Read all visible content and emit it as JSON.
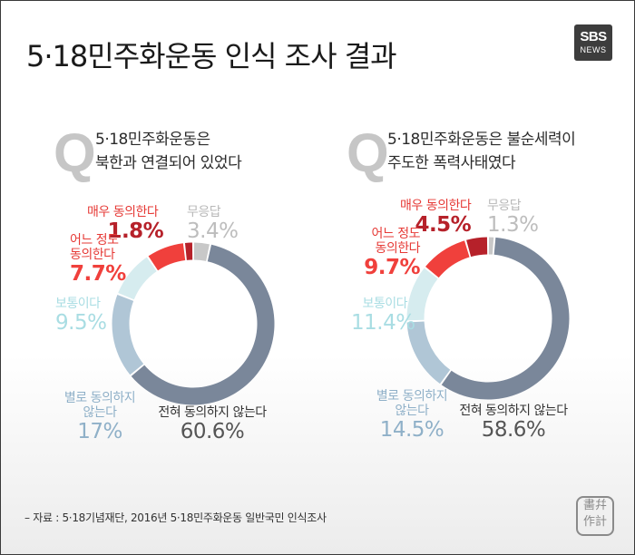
{
  "title": "5·18민주화운동 인식 조사 결과",
  "logo": {
    "line1": "SBS",
    "line2": "NEWS"
  },
  "source": "– 자료 : 5·18기념재단, 2016년 5·18민주화운동 일반국민 인식조사",
  "stamp": "",
  "colors": {
    "strongly_agree": "#b6212a",
    "somewhat_agree": "#f0403c",
    "neutral": "#d6ecef",
    "disagree": "#b0c6d6",
    "strongly_disagree": "#7a879a",
    "no_answer": "#c8c8c8"
  },
  "chart_data": [
    {
      "type": "pie",
      "variant": "donut",
      "question_mark": "Q",
      "question": [
        "5·18민주화운동은",
        "북한과 연결되어 있었다"
      ],
      "categories": [
        "매우 동의한다",
        "어느 정도 동의한다",
        "보통이다",
        "별로 동의하지 않는다",
        "전혀 동의하지 않는다",
        "무응답"
      ],
      "values": [
        1.8,
        7.7,
        9.5,
        17,
        60.6,
        3.4
      ],
      "labels": [
        {
          "cat": "매우 동의한다",
          "val": "1.8%"
        },
        {
          "cat": "어느 정도 동의한다",
          "val": "7.7%"
        },
        {
          "cat": "보통이다",
          "val": "9.5%"
        },
        {
          "cat": "별로 동의하지 않는다",
          "val": "17%"
        },
        {
          "cat": "전혀 동의하지 않는다",
          "val": "60.6%"
        },
        {
          "cat": "무응답",
          "val": "3.4%"
        }
      ]
    },
    {
      "type": "pie",
      "variant": "donut",
      "question_mark": "Q",
      "question": [
        "5·18민주화운동은 불순세력이",
        "주도한 폭력사태였다"
      ],
      "categories": [
        "매우 동의한다",
        "어느 정도 동의한다",
        "보통이다",
        "별로 동의하지 않는다",
        "전혀 동의하지 않는다",
        "무응답"
      ],
      "values": [
        4.5,
        9.7,
        11.4,
        14.5,
        58.6,
        1.3
      ],
      "labels": [
        {
          "cat": "매우 동의한다",
          "val": "4.5%"
        },
        {
          "cat": "어느 정도 동의한다",
          "val": "9.7%"
        },
        {
          "cat": "보통이다",
          "val": "11.4%"
        },
        {
          "cat": "별로 동의하지 않는다",
          "val": "14.5%"
        },
        {
          "cat": "전혀 동의하지 않는다",
          "val": "58.6%"
        },
        {
          "cat": "무응답",
          "val": "1.3%"
        }
      ]
    }
  ]
}
